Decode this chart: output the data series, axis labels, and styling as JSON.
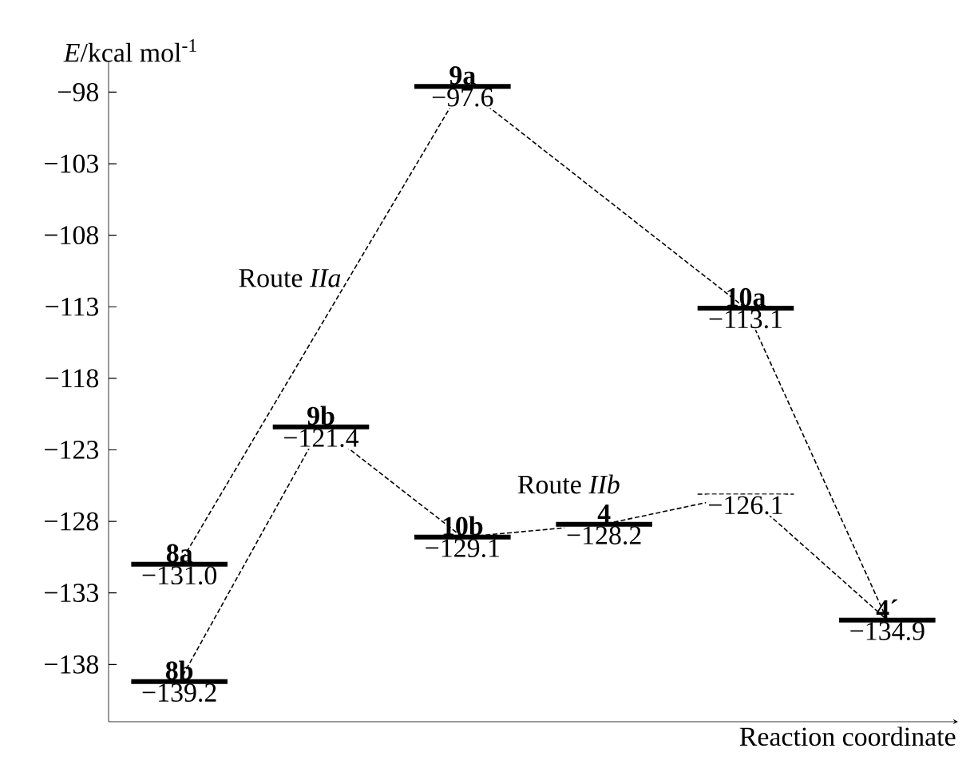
{
  "chart_data": {
    "type": "line",
    "xlabel": "Reaction coordinate",
    "ylabel": "*E*/kcal mol$^{-1}$",
    "categories": [
      null,
      null,
      null,
      null,
      null,
      null
    ],
    "series": [
      {
        "name": "Route *IIa*",
        "color": "#000000",
        "values": [
          -131.0,
          null,
          -97.6,
          null,
          -113.1,
          -134.9
        ],
        "value_labels": [
          "−131.0",
          null,
          "−97.6",
          null,
          "−113.1",
          "−134.9"
        ]
      },
      {
        "name": "Route *IIb*",
        "color": "#000000",
        "values": [
          -139.2,
          -121.4,
          -129.1,
          -128.2,
          -126.1,
          -134.9
        ],
        "value_labels": [
          "−139.2",
          "−121.4",
          "−129.1",
          "−128.2",
          "−126.1",
          null
        ]
      }
    ],
    "annotations": [
      {
        "text": "8a",
        "y": -131.0
      },
      {
        "text": "9a",
        "y": -97.6
      },
      {
        "text": "10a",
        "y": -113.1
      },
      {
        "text": "4´",
        "y": -134.9
      },
      {
        "text": "8b",
        "y": -139.2
      },
      {
        "text": "9b",
        "y": -121.4
      },
      {
        "text": "10b",
        "y": -129.1
      },
      {
        "text": "4",
        "y": -128.2
      }
    ],
    "ylim": [
      -142,
      -95.8
    ],
    "yticks": [
      {
        "value": -98,
        "label": "−98"
      },
      {
        "value": -103,
        "label": "−103"
      },
      {
        "value": -108,
        "label": "−108"
      },
      {
        "value": -113,
        "label": "−113"
      },
      {
        "value": -118,
        "label": "−118"
      },
      {
        "value": -123,
        "label": "−123"
      },
      {
        "value": -128,
        "label": "−128"
      },
      {
        "value": -133,
        "label": "−133"
      },
      {
        "value": -138,
        "label": "−138"
      }
    ],
    "tick_labels": "y",
    "marker": "none",
    "line_style": "dashed"
  }
}
